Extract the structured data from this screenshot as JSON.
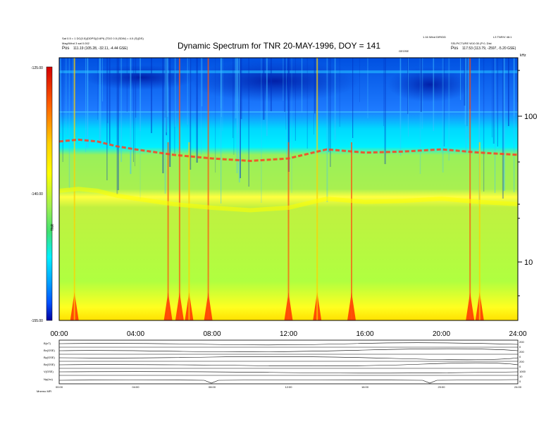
{
  "header": {
    "left_line1": "Sat 0.5 = 1 DC(0.5)(DDPS)(0.6Pt) (TDO 0.5 (SDW) = 4.0 (S)(DS)",
    "left_line2": "Mag/Wind 3 sat 0.002",
    "left_pos_label": "Pos",
    "left_pos_value": "111.19 (105.28, -32.11, -4.44 GSE)",
    "right_line1": "1.16 Wind DIR/DD",
    "right_line2": "L3 TNR/V 46:1",
    "right_line3": "SSLPICTURE W10:30 (P:0, Dist",
    "right_pos_label": "Pos",
    "right_pos_value": "117.53 (113.79, -2597, -5.20 GSE)",
    "center_small": "GEOSE"
  },
  "title": "Dynamic Spectrum for TNR 20-MAY-1996, DOY = 141",
  "colorbar": {
    "label": "TNR",
    "ticks": [
      "-125.00",
      "-140.00",
      "-155.00"
    ],
    "colors": [
      "#d40000",
      "#ff6000",
      "#ffd000",
      "#ffff00",
      "#a0f050",
      "#40e070",
      "#00f0ff",
      "#00a0ff",
      "#0050ff",
      "#0000a0"
    ]
  },
  "chart_data": {
    "type": "heatmap",
    "title": "Dynamic Spectrum for TNR 20-MAY-1996, DOY = 141",
    "x_tick_labels": [
      "00:00",
      "04:00",
      "08:00",
      "12:00",
      "16:00",
      "20:00",
      "24:00"
    ],
    "x_range_hours": [
      0,
      24
    ],
    "y_scale": "log",
    "y_unit_label": "kHz",
    "y_tick_labels": [
      "100",
      "10"
    ],
    "y_range": [
      4,
      256
    ],
    "colorbar_range": [
      -155.0,
      -125.0
    ],
    "colorbar_tick_labels": [
      "-125.00",
      "-140.00",
      "-155.00"
    ],
    "plasma_line_khz": [
      {
        "t": 0.0,
        "f": 68
      },
      {
        "t": 1.0,
        "f": 70
      },
      {
        "t": 2.0,
        "f": 68
      },
      {
        "t": 3.0,
        "f": 63
      },
      {
        "t": 4.0,
        "f": 60
      },
      {
        "t": 6.0,
        "f": 55
      },
      {
        "t": 8.0,
        "f": 52
      },
      {
        "t": 10.0,
        "f": 50
      },
      {
        "t": 12.0,
        "f": 52
      },
      {
        "t": 14.0,
        "f": 60
      },
      {
        "t": 16.0,
        "f": 57
      },
      {
        "t": 18.0,
        "f": 58
      },
      {
        "t": 20.0,
        "f": 60
      },
      {
        "t": 22.0,
        "f": 57
      },
      {
        "t": 24.0,
        "f": 55
      }
    ],
    "bursts_hours": [
      0.8,
      5.7,
      6.3,
      6.8,
      7.8,
      12.0,
      13.5,
      15.3,
      21.5,
      22.0
    ]
  },
  "panels": {
    "labels": [
      "B(nT)",
      "Bx(GSE)",
      "By(GSE)",
      "Bz(GSE)",
      "V(GSE)",
      "Np(/cc)"
    ],
    "right_labels": [
      "200",
      "0",
      "200",
      "0",
      "200",
      "0",
      "1000",
      "10",
      "0"
    ],
    "x_tick_labels": [
      "00:00",
      "04:00",
      "08:00",
      "12:00",
      "16:00",
      "20:00",
      "24:00"
    ],
    "footer": "Mnemo  MFI"
  }
}
